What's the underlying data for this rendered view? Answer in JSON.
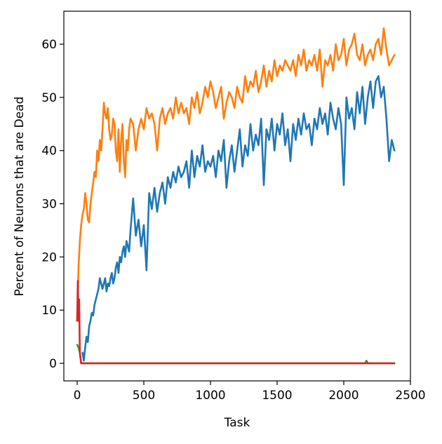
{
  "chart_data": {
    "type": "line",
    "title": "",
    "xlabel": "Task",
    "ylabel": "Percent of Neurons that are Dead",
    "xlim": [
      -100,
      2500
    ],
    "ylim": [
      -3.3,
      66.2
    ],
    "xticks": [
      0,
      500,
      1000,
      1500,
      2000,
      2500
    ],
    "yticks": [
      0,
      10,
      20,
      30,
      40,
      50,
      60
    ],
    "grid": false,
    "legend": "none",
    "series": [
      {
        "color": "#ff7f0e",
        "x": [
          0,
          10,
          20,
          30,
          40,
          50,
          60,
          70,
          80,
          90,
          100,
          110,
          120,
          130,
          140,
          150,
          160,
          170,
          180,
          190,
          200,
          210,
          220,
          230,
          240,
          250,
          260,
          270,
          280,
          290,
          300,
          310,
          320,
          330,
          340,
          350,
          360,
          370,
          380,
          390,
          400,
          420,
          440,
          460,
          480,
          500,
          520,
          540,
          560,
          580,
          600,
          620,
          640,
          660,
          680,
          700,
          720,
          740,
          760,
          780,
          800,
          820,
          840,
          860,
          880,
          900,
          920,
          940,
          960,
          980,
          1000,
          1020,
          1040,
          1060,
          1080,
          1100,
          1120,
          1140,
          1160,
          1180,
          1200,
          1220,
          1240,
          1260,
          1280,
          1300,
          1320,
          1340,
          1360,
          1380,
          1400,
          1420,
          1440,
          1460,
          1480,
          1500,
          1520,
          1540,
          1560,
          1580,
          1600,
          1620,
          1640,
          1660,
          1680,
          1700,
          1720,
          1740,
          1760,
          1780,
          1800,
          1820,
          1840,
          1860,
          1880,
          1900,
          1920,
          1940,
          1960,
          1980,
          2000,
          2020,
          2040,
          2060,
          2080,
          2100,
          2120,
          2140,
          2160,
          2180,
          2200,
          2220,
          2240,
          2260,
          2280,
          2300,
          2320,
          2340,
          2360,
          2380
        ],
        "y": [
          8,
          18,
          23,
          26,
          28,
          29,
          32,
          30,
          27,
          26.5,
          30,
          32,
          34,
          36,
          35,
          40,
          38,
          42,
          40,
          44,
          49,
          47,
          46,
          48,
          44,
          42,
          43,
          46,
          45,
          40,
          38,
          44,
          36,
          42,
          45,
          38,
          35,
          42,
          40,
          44,
          46,
          45,
          40,
          44,
          46,
          44,
          48,
          46,
          47,
          45,
          40,
          46,
          48,
          45,
          47,
          48,
          46,
          50,
          47,
          49,
          47,
          48,
          45,
          50,
          48,
          51,
          47,
          49,
          52,
          50,
          53,
          51,
          48,
          50,
          52,
          46,
          49,
          51,
          50,
          48,
          52,
          50,
          49,
          54,
          51,
          53,
          52,
          55,
          51,
          53,
          56,
          52,
          55,
          53,
          57,
          54,
          56,
          55,
          57,
          56,
          55,
          57,
          54,
          58,
          56,
          59,
          55,
          57,
          56,
          58,
          55,
          59,
          52,
          57,
          56,
          58,
          55,
          60,
          57,
          58,
          61,
          56,
          59,
          60,
          62,
          58,
          57,
          60,
          56,
          58,
          59,
          57,
          60,
          61,
          58,
          63,
          59,
          56,
          57,
          58
        ]
      },
      {
        "color": "#1f77b4",
        "x": [
          40,
          50,
          60,
          70,
          80,
          90,
          100,
          110,
          120,
          130,
          140,
          150,
          160,
          170,
          180,
          190,
          200,
          210,
          220,
          230,
          240,
          250,
          260,
          270,
          280,
          290,
          300,
          310,
          320,
          330,
          340,
          350,
          360,
          370,
          380,
          390,
          400,
          420,
          440,
          460,
          480,
          500,
          520,
          540,
          560,
          580,
          600,
          620,
          640,
          660,
          680,
          700,
          720,
          740,
          760,
          780,
          800,
          820,
          840,
          860,
          880,
          900,
          920,
          940,
          960,
          980,
          1000,
          1020,
          1040,
          1060,
          1080,
          1100,
          1120,
          1140,
          1160,
          1180,
          1200,
          1220,
          1240,
          1260,
          1280,
          1300,
          1320,
          1340,
          1360,
          1380,
          1400,
          1420,
          1440,
          1460,
          1480,
          1500,
          1520,
          1540,
          1560,
          1580,
          1600,
          1620,
          1640,
          1660,
          1680,
          1700,
          1720,
          1740,
          1760,
          1780,
          1800,
          1820,
          1840,
          1860,
          1880,
          1900,
          1920,
          1940,
          1960,
          1980,
          2000,
          2020,
          2040,
          2060,
          2080,
          2100,
          2120,
          2140,
          2160,
          2180,
          2200,
          2220,
          2240,
          2260,
          2280,
          2300,
          2320,
          2340,
          2360,
          2380
        ],
        "y": [
          2,
          0.5,
          3,
          5,
          4,
          7,
          8,
          9.5,
          9,
          11,
          12,
          13,
          14,
          16,
          15,
          14,
          15,
          16,
          13.5,
          15,
          14.5,
          16,
          17,
          15,
          16,
          18,
          19,
          17,
          20,
          19,
          21,
          22,
          20,
          23,
          22,
          21,
          25,
          31,
          24,
          27,
          22,
          26,
          17.5,
          32,
          29,
          33,
          28.5,
          32,
          34,
          30,
          35,
          33,
          36,
          34,
          37,
          35,
          36,
          38,
          33,
          40,
          35,
          39,
          37,
          41,
          36,
          38,
          37,
          39,
          35,
          40,
          38,
          42,
          33,
          38,
          41,
          36,
          40,
          44,
          37,
          41,
          39,
          45,
          40,
          43,
          41,
          46,
          33.5,
          44,
          42,
          46,
          40,
          45,
          43,
          47,
          41,
          44,
          38,
          45,
          42,
          46,
          43,
          47,
          44,
          45,
          41,
          46,
          44,
          48,
          45,
          47,
          43,
          49,
          46,
          44,
          48,
          45,
          33.5,
          50,
          46,
          48,
          44,
          51,
          47,
          52,
          45,
          50,
          53,
          48,
          53,
          54,
          50,
          52,
          46,
          38,
          42,
          40
        ]
      },
      {
        "color": "#2ca02c",
        "x": [
          0,
          10,
          20,
          30,
          2160,
          2170,
          2180,
          2380
        ],
        "y": [
          3.5,
          3,
          2,
          0,
          0,
          0.5,
          0,
          0
        ]
      },
      {
        "color": "#d62728",
        "x": [
          0,
          5,
          10,
          15,
          20,
          30,
          60,
          2380
        ],
        "y": [
          8,
          15.5,
          8,
          12,
          2,
          0,
          0,
          0
        ]
      }
    ]
  }
}
